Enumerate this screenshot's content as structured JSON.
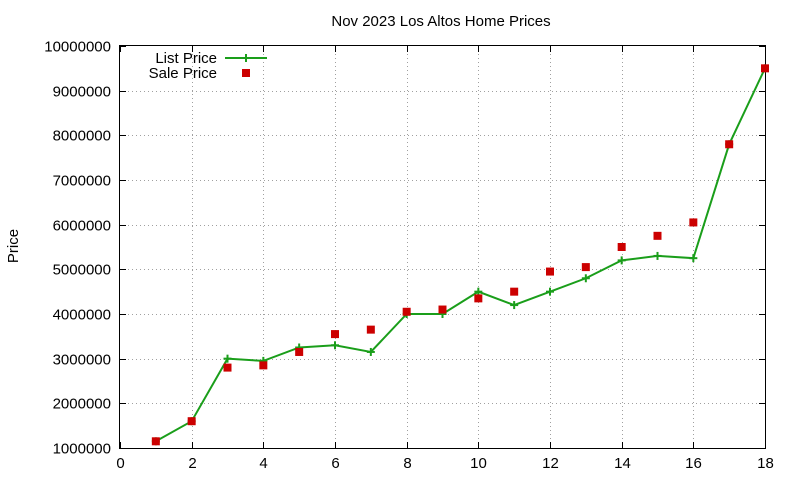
{
  "chart_data": {
    "type": "line",
    "title": "Nov 2023 Los Altos Home Prices",
    "xlabel": "",
    "ylabel": "Price",
    "xlim": [
      0,
      18
    ],
    "ylim": [
      1000000,
      10000000
    ],
    "xticks": [
      0,
      2,
      4,
      6,
      8,
      10,
      12,
      14,
      16,
      18
    ],
    "yticks": [
      1000000,
      2000000,
      3000000,
      4000000,
      5000000,
      6000000,
      7000000,
      8000000,
      9000000,
      10000000
    ],
    "grid": true,
    "legend_position": "top-left",
    "x": [
      1,
      2,
      3,
      4,
      5,
      6,
      7,
      8,
      9,
      10,
      11,
      12,
      13,
      14,
      15,
      16,
      17,
      18
    ],
    "series": [
      {
        "name": "List Price",
        "style": "line-points",
        "color": "#1a9e1a",
        "values": [
          1150000,
          1600000,
          3000000,
          2950000,
          3250000,
          3300000,
          3150000,
          4000000,
          4000000,
          4500000,
          4200000,
          4500000,
          4800000,
          5200000,
          5300000,
          5250000,
          7800000,
          9500000
        ]
      },
      {
        "name": "Sale Price",
        "style": "points",
        "color": "#cc0000",
        "values": [
          1150000,
          1600000,
          2800000,
          2850000,
          3150000,
          3550000,
          3650000,
          4050000,
          4100000,
          4350000,
          4500000,
          4950000,
          5050000,
          5500000,
          5750000,
          6050000,
          7800000,
          9500000
        ]
      }
    ]
  }
}
